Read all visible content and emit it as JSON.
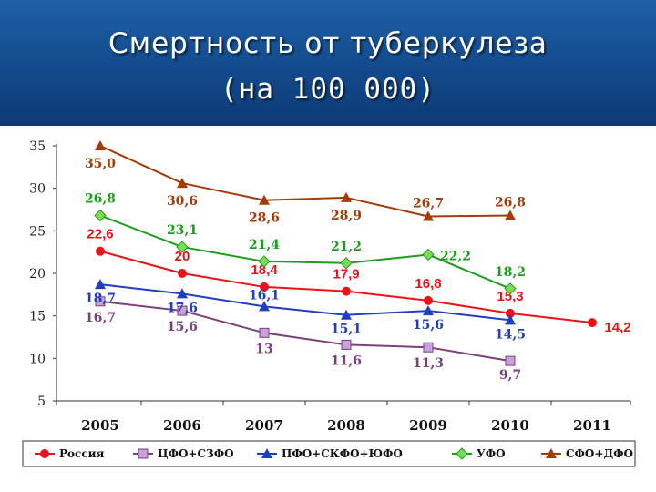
{
  "title_line1": "Смертность от туберкулеза",
  "title_line2": "(на 100 000)",
  "colors": {
    "header_bg": "#134a8c",
    "russia": "#e8141a",
    "cfo": "#7b3f7b",
    "pfo": "#1f3fbf",
    "ufo": "#1c9e1c",
    "sfo": "#a23d0a"
  },
  "chart_data": {
    "type": "line",
    "categories": [
      "2005",
      "2006",
      "2007",
      "2008",
      "2009",
      "2010",
      "2011"
    ],
    "ylim": [
      5,
      35
    ],
    "yticks": [
      "35",
      "30",
      "25",
      "20",
      "15",
      "10",
      "5"
    ],
    "grid": false,
    "legend_position": "bottom",
    "series": [
      {
        "name": "Россия",
        "color": "#e8141a",
        "marker": "circle",
        "values": [
          22.6,
          20,
          18.4,
          17.9,
          16.8,
          15.3,
          14.2
        ],
        "labels": [
          "22,6",
          "20",
          "18,4",
          "17,9",
          "16,8",
          "15,3",
          "14,2"
        ]
      },
      {
        "name": "ЦФО+СЗФО",
        "color": "#7b3f7b",
        "marker": "square",
        "values": [
          16.7,
          15.6,
          13,
          11.6,
          11.3,
          9.7,
          null
        ],
        "labels": [
          "16,7",
          "15,6",
          "13",
          "11,6",
          "11,3",
          "9,7",
          ""
        ]
      },
      {
        "name": "ПФО+СКФО+ЮФО",
        "color": "#1f3fbf",
        "marker": "triangle",
        "values": [
          18.7,
          17.6,
          16.1,
          15.1,
          15.6,
          14.5,
          null
        ],
        "labels": [
          "18,7",
          "17,6",
          "16,1",
          "15,1",
          "15,6",
          "14,5",
          ""
        ]
      },
      {
        "name": "УФО",
        "color": "#1c9e1c",
        "marker": "diamond",
        "values": [
          26.8,
          23.1,
          21.4,
          21.2,
          22.2,
          18.2,
          null
        ],
        "labels": [
          "26,8",
          "23,1",
          "21,4",
          "21,2",
          "22,2",
          "18,2",
          ""
        ]
      },
      {
        "name": "СФО+ДФО",
        "color": "#a23d0a",
        "marker": "triangle",
        "values": [
          35.0,
          30.6,
          28.6,
          28.9,
          26.7,
          26.8,
          null
        ],
        "labels": [
          "35,0",
          "30,6",
          "28,6",
          "28,9",
          "26,7",
          "26,8",
          ""
        ]
      }
    ]
  }
}
